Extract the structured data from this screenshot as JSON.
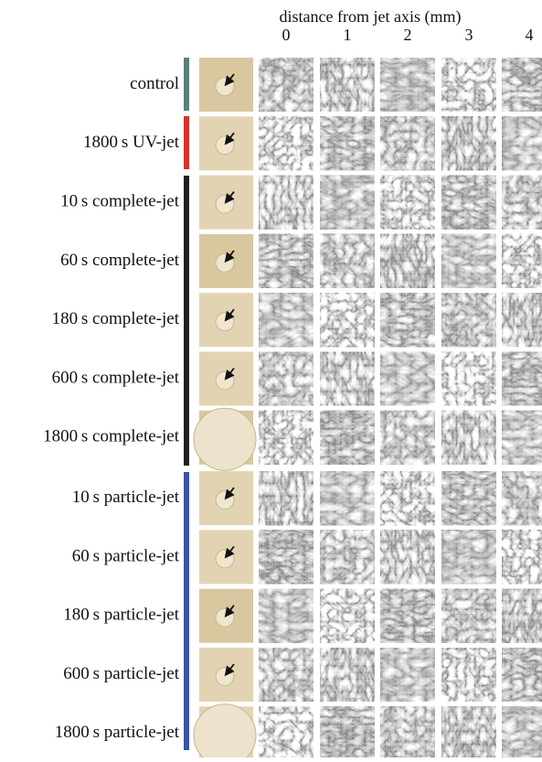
{
  "header": {
    "title": "distance from jet axis (mm)",
    "columns": [
      "0",
      "1",
      "2",
      "3",
      "4"
    ]
  },
  "rows": [
    {
      "label": "control"
    },
    {
      "label": "1800 s UV-jet"
    },
    {
      "label": "10 s complete-jet"
    },
    {
      "label": "60 s complete-jet"
    },
    {
      "label": "180 s complete-jet"
    },
    {
      "label": "600 s complete-jet"
    },
    {
      "label": "1800 s complete-jet"
    },
    {
      "label": "10 s particle-jet"
    },
    {
      "label": "60 s particle-jet"
    },
    {
      "label": "180 s particle-jet"
    },
    {
      "label": "600 s particle-jet"
    },
    {
      "label": "1800 s particle-jet"
    }
  ]
}
